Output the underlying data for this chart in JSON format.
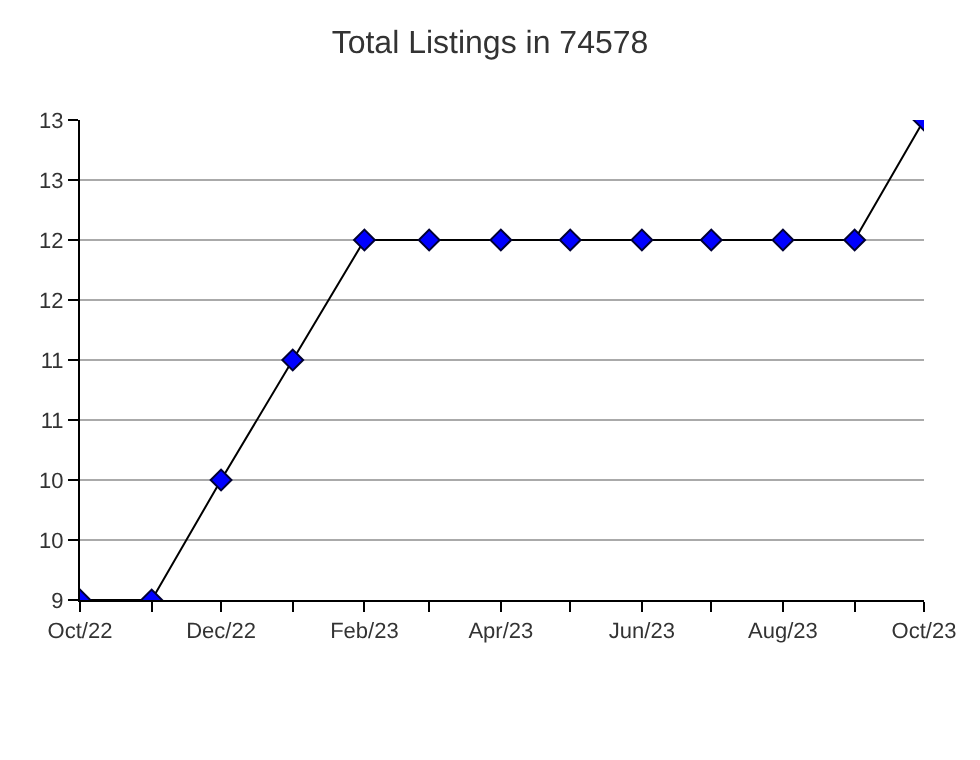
{
  "chart_data": {
    "type": "line",
    "title": "Total Listings in 74578",
    "x": [
      "2022-10",
      "2022-11",
      "2022-12",
      "2023-01",
      "2023-02",
      "2023-03",
      "2023-04",
      "2023-05",
      "2023-06",
      "2023-07",
      "2023-08",
      "2023-09",
      "2023-10"
    ],
    "series": [
      {
        "color": "#0000ff",
        "values": [
          9,
          9,
          10,
          11,
          12,
          12,
          12,
          12,
          12,
          12,
          12,
          12,
          13
        ]
      }
    ],
    "xlim": [
      "2022-10",
      "2023-10"
    ],
    "xticks": [
      {
        "value": "2022-10",
        "label": "Oct/22"
      },
      {
        "value": "2022-11",
        "label": null
      },
      {
        "value": "2022-12",
        "label": "Dec/22"
      },
      {
        "value": "2023-01",
        "label": null
      },
      {
        "value": "2023-02",
        "label": "Feb/23"
      },
      {
        "value": "2023-03",
        "label": null
      },
      {
        "value": "2023-04",
        "label": "Apr/23"
      },
      {
        "value": "2023-05",
        "label": null
      },
      {
        "value": "2023-06",
        "label": "Jun/23"
      },
      {
        "value": "2023-07",
        "label": null
      },
      {
        "value": "2023-08",
        "label": "Aug/23"
      },
      {
        "value": "2023-09",
        "label": null
      },
      {
        "value": "2023-10",
        "label": "Oct/23"
      }
    ],
    "ylim": [
      9,
      13
    ],
    "yticks": [
      9,
      {
        "value": 9.5,
        "label": "10"
      },
      10,
      {
        "value": 10.5,
        "label": "11"
      },
      11,
      {
        "value": 11.5,
        "label": "12"
      },
      12,
      {
        "value": 12.5,
        "label": "13"
      },
      13
    ],
    "grid": "y",
    "marker": "diamond",
    "line_style": "solid",
    "legend": false
  }
}
